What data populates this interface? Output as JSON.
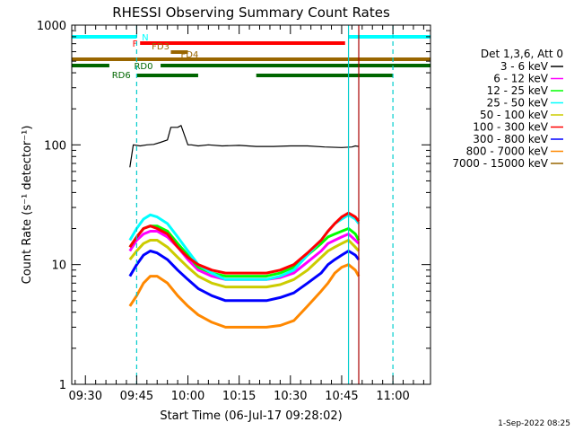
{
  "chart_data": {
    "type": "line",
    "title": "RHESSI Observing Summary Count Rates",
    "xlabel": "Start Time (06-Jul-17 09:28:02)",
    "ylabel": "Count Rate (s⁻¹ detector⁻¹)",
    "yscale": "log",
    "ylim": [
      1,
      1000
    ],
    "xlim_minutes": [
      -4,
      101
    ],
    "xticks": [
      "09:30",
      "09:45",
      "10:00",
      "10:15",
      "10:30",
      "10:45",
      "11:00"
    ],
    "xtick_minutes": [
      0,
      15,
      30,
      45,
      60,
      75,
      90
    ],
    "yticks": [
      "1",
      "10",
      "100",
      "1000"
    ],
    "ytick_values": [
      1,
      10,
      100,
      1000
    ],
    "legend_header": "Det 1,3,6, Att 0",
    "legend_position": "right",
    "footer_date": "1-Sep-2022 08:25",
    "series": [
      {
        "name": "3 - 6 keV",
        "color": "#000000",
        "x": [
          13,
          14,
          16,
          18,
          20,
          22,
          24,
          25,
          27,
          28,
          30,
          31,
          33,
          36,
          40,
          45,
          50,
          55,
          60,
          65,
          70,
          75,
          78,
          79,
          80
        ],
        "y": [
          65,
          100,
          98,
          100,
          101,
          105,
          110,
          140,
          140,
          145,
          100,
          100,
          98,
          100,
          98,
          99,
          97,
          97,
          98,
          98,
          96,
          95,
          96,
          98,
          97
        ]
      },
      {
        "name": "6 - 12 keV",
        "color": "#ff00ff",
        "x": [
          13,
          15,
          17,
          19,
          21,
          24,
          27,
          30,
          33,
          37,
          41,
          45,
          49,
          53,
          57,
          61,
          65,
          69,
          71,
          73,
          75,
          77,
          79,
          80
        ],
        "y": [
          13,
          16,
          18,
          19,
          19,
          17,
          14,
          11,
          9,
          8,
          7.5,
          7.5,
          7.5,
          7.5,
          7.8,
          8.5,
          10.5,
          13,
          15,
          16,
          17,
          18,
          16,
          15
        ]
      },
      {
        "name": "12 - 25 keV",
        "color": "#00ff00",
        "x": [
          13,
          15,
          17,
          19,
          21,
          24,
          27,
          30,
          33,
          37,
          41,
          45,
          49,
          53,
          57,
          61,
          65,
          69,
          71,
          73,
          75,
          77,
          79,
          80
        ],
        "y": [
          14,
          17,
          20,
          21,
          21,
          19,
          15,
          12,
          9.5,
          8.5,
          8,
          8,
          8,
          8,
          8.5,
          9.5,
          12,
          15,
          17,
          18,
          19,
          20,
          18,
          16
        ]
      },
      {
        "name": "25 - 50 keV",
        "color": "#00ffff",
        "x": [
          13,
          15,
          17,
          19,
          21,
          24,
          27,
          30,
          33,
          37,
          41,
          45,
          49,
          53,
          57,
          61,
          65,
          69,
          71,
          73,
          75,
          77,
          79,
          80
        ],
        "y": [
          16,
          20,
          24,
          26,
          25,
          22,
          17,
          13,
          10,
          8.5,
          7.5,
          7.5,
          7.5,
          7.5,
          8,
          9,
          12,
          16,
          19,
          22,
          24,
          26,
          24,
          22
        ]
      },
      {
        "name": "50 - 100 keV",
        "color": "#cccc00",
        "x": [
          13,
          15,
          17,
          19,
          21,
          24,
          27,
          30,
          33,
          37,
          41,
          45,
          49,
          53,
          57,
          61,
          65,
          69,
          71,
          73,
          75,
          77,
          79,
          80
        ],
        "y": [
          11,
          13,
          15,
          16,
          16,
          14,
          11.5,
          9.5,
          8,
          7,
          6.5,
          6.5,
          6.5,
          6.5,
          6.8,
          7.5,
          9,
          11.5,
          13,
          14,
          15,
          16,
          14,
          13
        ]
      },
      {
        "name": "100 - 300 keV",
        "color": "#ff0000",
        "x": [
          13,
          15,
          17,
          19,
          21,
          24,
          27,
          30,
          33,
          37,
          41,
          45,
          49,
          53,
          57,
          61,
          65,
          69,
          71,
          73,
          75,
          77,
          79,
          80
        ],
        "y": [
          14,
          17,
          20,
          21,
          20,
          18,
          14,
          11.5,
          10,
          9,
          8.5,
          8.5,
          8.5,
          8.5,
          9,
          10,
          12.5,
          16,
          19,
          22,
          25,
          27,
          25,
          23
        ]
      },
      {
        "name": "300 - 800 keV",
        "color": "#0000ff",
        "x": [
          13,
          15,
          17,
          19,
          21,
          24,
          27,
          30,
          33,
          37,
          41,
          45,
          49,
          53,
          57,
          61,
          65,
          69,
          71,
          73,
          75,
          77,
          79,
          80
        ],
        "y": [
          8,
          10,
          12,
          13,
          12.5,
          11,
          9,
          7.5,
          6.3,
          5.5,
          5,
          5,
          5,
          5,
          5.3,
          5.8,
          7,
          8.5,
          10,
          11,
          12,
          13,
          12,
          11
        ]
      },
      {
        "name": "800 - 7000 keV",
        "color": "#ff8800",
        "x": [
          13,
          15,
          17,
          19,
          21,
          24,
          27,
          30,
          33,
          37,
          41,
          45,
          49,
          53,
          57,
          61,
          65,
          69,
          71,
          73,
          75,
          77,
          79,
          80
        ],
        "y": [
          4.5,
          5.5,
          7,
          8,
          8,
          7,
          5.5,
          4.5,
          3.8,
          3.3,
          3,
          3,
          3,
          3,
          3.1,
          3.4,
          4.5,
          6,
          7,
          8.5,
          9.5,
          10,
          9,
          8
        ]
      },
      {
        "name": "7000 - 15000 keV",
        "color": "#996600",
        "x": [],
        "y": []
      }
    ],
    "status_bars": [
      {
        "label": "N",
        "color": "#00ffff",
        "segments": [
          [
            -4,
            15
          ],
          [
            77,
            101
          ]
        ]
      },
      {
        "label": "F",
        "color": "#ff0000",
        "segments": [
          [
            16,
            76
          ]
        ]
      },
      {
        "label": "FD3",
        "color": "#996600",
        "segments": [
          [
            25,
            30
          ]
        ]
      },
      {
        "label": "FD4",
        "color": "#996600",
        "segments": [
          [
            -4,
            101
          ]
        ]
      },
      {
        "label": "RD0",
        "color": "#006600",
        "segments": [
          [
            -4,
            7
          ],
          [
            22,
            101
          ]
        ]
      },
      {
        "label": "RD6",
        "color": "#006600",
        "segments": [
          [
            15,
            33
          ],
          [
            50,
            90
          ]
        ]
      }
    ],
    "vertical_lines": [
      {
        "minute": 15,
        "color": "#00cccc",
        "style": "dashed"
      },
      {
        "minute": 77,
        "color": "#00cccc",
        "style": "solid"
      },
      {
        "minute": 90,
        "color": "#00cccc",
        "style": "dashed"
      },
      {
        "minute": 80,
        "color": "#aa0000",
        "style": "solid"
      }
    ]
  }
}
